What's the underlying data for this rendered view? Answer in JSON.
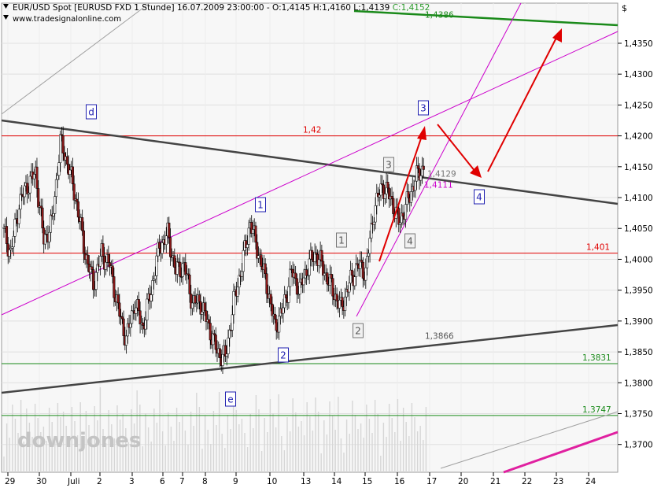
{
  "header": {
    "title": "EUR/USD Spot [EURUSD FXD  1 Stunde] 16.07.2009 23:00:00 - O:1,4145 H:1,4160 L:1,4139",
    "close_label": "C:1,4152",
    "source": "www.tradesignalonline.com",
    "currency_symbol": "$"
  },
  "watermark": "downjones",
  "chart_data": {
    "type": "candlestick",
    "ylim": [
      1.3655,
      1.4415
    ],
    "y_ticks": [
      "1,3700",
      "1,3750",
      "1,3800",
      "1,3850",
      "1,3900",
      "1,3950",
      "1,4000",
      "1,4050",
      "1,4100",
      "1,4150",
      "1,4200",
      "1,4250",
      "1,4300",
      "1,4350"
    ],
    "x_ticks": [
      "29",
      "30",
      "Juli",
      "2",
      "3",
      "6",
      "7",
      "8",
      "9",
      "10",
      "13",
      "14",
      "15",
      "16",
      "17",
      "20",
      "21",
      "22",
      "23",
      "24"
    ],
    "price_path": [
      1.405,
      1.401,
      1.409,
      1.412,
      1.414,
      1.403,
      1.406,
      1.419,
      1.415,
      1.409,
      1.401,
      1.396,
      1.401,
      1.399,
      1.392,
      1.387,
      1.393,
      1.389,
      1.395,
      1.402,
      1.404,
      1.398,
      1.399,
      1.393,
      1.393,
      1.389,
      1.385,
      1.384,
      1.393,
      1.399,
      1.406,
      1.401,
      1.396,
      1.389,
      1.392,
      1.398,
      1.395,
      1.399,
      1.401,
      1.398,
      1.395,
      1.392,
      1.396,
      1.399,
      1.398,
      1.408,
      1.412,
      1.41,
      1.406,
      1.409,
      1.413,
      1.415
    ],
    "horizontal_levels": [
      {
        "label": "1,42",
        "value": 1.42,
        "color": "#e00000"
      },
      {
        "label": "1,401",
        "value": 1.401,
        "color": "#e00000"
      },
      {
        "label": "1,4386",
        "value": 1.4386,
        "color": "#1a8a1a"
      },
      {
        "label": "1,3831",
        "value": 1.3831,
        "color": "#1a8a1a"
      },
      {
        "label": "1,3747",
        "value": 1.3747,
        "color": "#1a8a1a"
      },
      {
        "label": "1,3866",
        "value": 1.3866,
        "color": "#555555"
      },
      {
        "label": "1,4129",
        "value": 1.4129,
        "color": "#777777"
      },
      {
        "label": "1,4111",
        "value": 1.4111,
        "color": "#cc00cc"
      }
    ],
    "wave_labels": [
      {
        "label": "d",
        "style": "blue"
      },
      {
        "label": "e",
        "style": "blue"
      },
      {
        "label": "1",
        "style": "blue"
      },
      {
        "label": "2",
        "style": "blue"
      },
      {
        "label": "3",
        "style": "blue"
      },
      {
        "label": "4",
        "style": "blue"
      },
      {
        "label": "1",
        "style": "gray"
      },
      {
        "label": "2",
        "style": "gray"
      },
      {
        "label": "3",
        "style": "gray"
      },
      {
        "label": "4",
        "style": "gray"
      }
    ],
    "colors": {
      "up": "#ffffff",
      "down": "#8b1a1a",
      "wick": "#000000",
      "arrows": "#e00000",
      "channel": "#cc00cc",
      "trend": "#444444"
    }
  }
}
